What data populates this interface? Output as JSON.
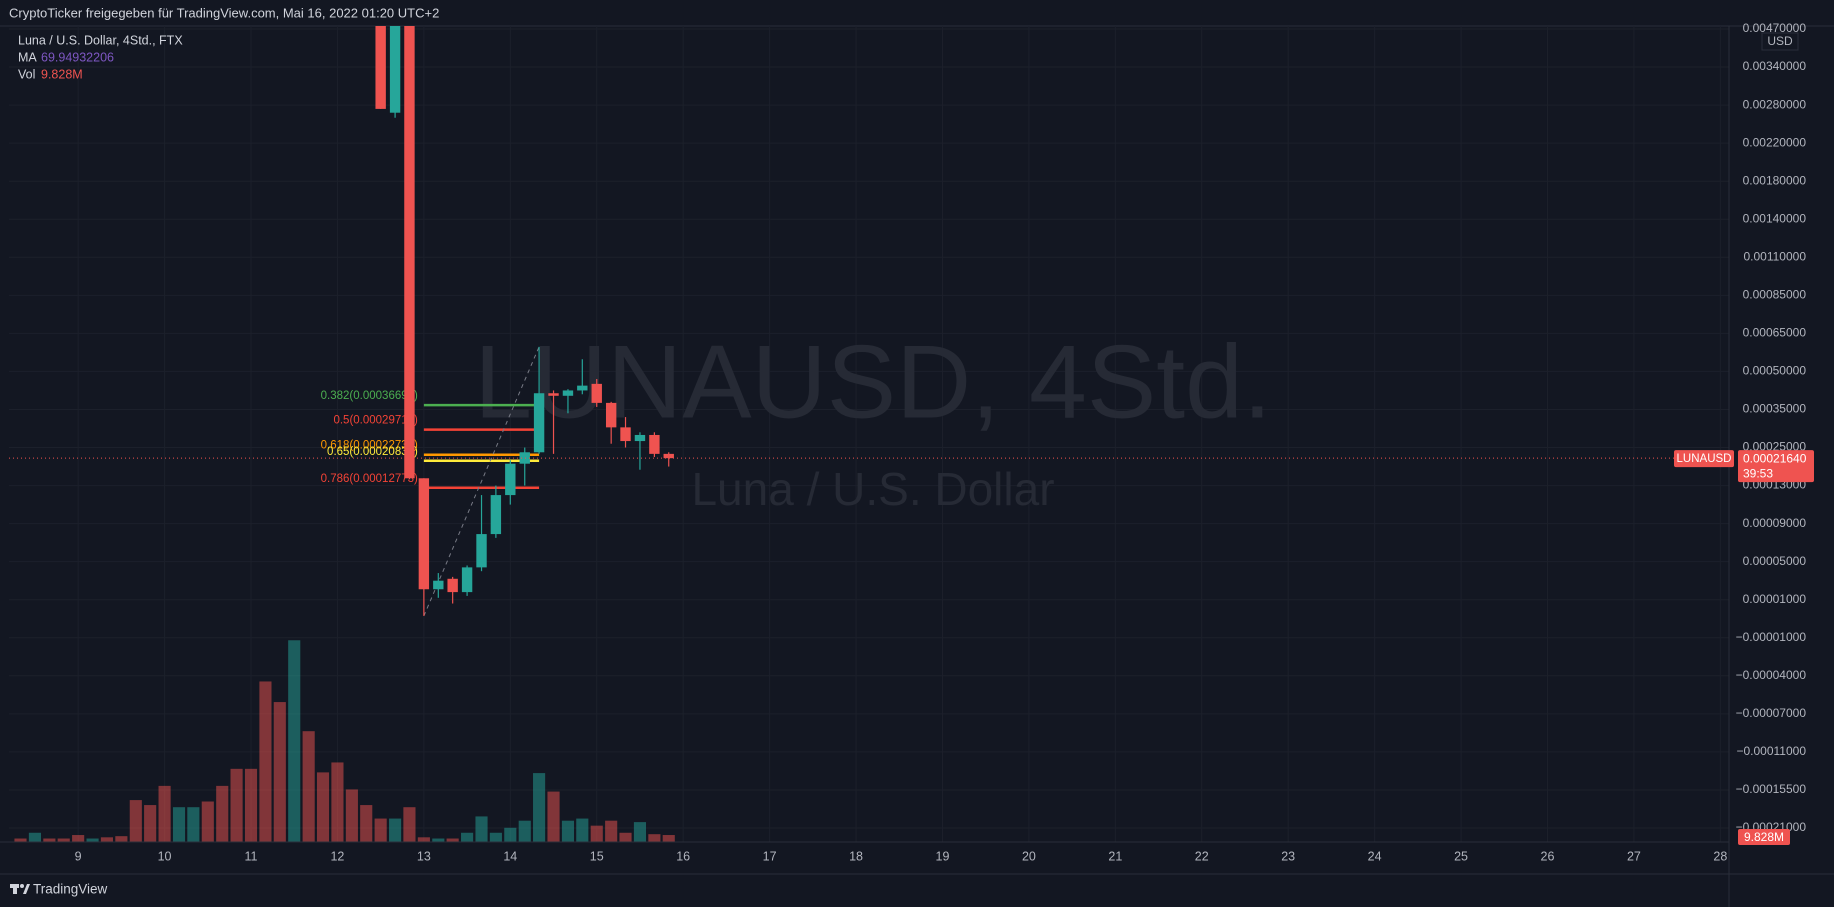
{
  "chart_data": {
    "type": "candlestick",
    "header": "CryptoTicker freigegeben für TradingView.com, Mai 16, 2022 01:20 UTC+2",
    "legend_title": "Luna / U.S. Dollar, 4Std., FTX",
    "ma_label": "MA",
    "ma_value": "69.94932206",
    "vol_label": "Vol",
    "vol_value": "9.828M",
    "watermark": "LUNAUSD, 4Std.",
    "watermark_sub": "Luna / U.S. Dollar",
    "currency": "USD",
    "symbol": "LUNAUSD",
    "last_price": {
      "value": 0.0002164,
      "label": "0.00021640"
    },
    "countdown": "39:53",
    "footer": "TradingView",
    "up_color": "#26a69a",
    "down_color": "#ef5350",
    "grid": true,
    "xlim": [
      8.2,
      28.1
    ],
    "xticks": [
      9,
      10,
      11,
      12,
      13,
      14,
      15,
      16,
      17,
      18,
      19,
      20,
      21,
      22,
      23,
      24,
      25,
      26,
      27,
      28
    ],
    "ylim": [
      -0.00023,
      0.0048
    ],
    "yticks": [
      {
        "value": 0.0047,
        "label": "0.00470000"
      },
      {
        "value": 0.0034,
        "label": "0.00340000"
      },
      {
        "value": 0.0028,
        "label": "0.00280000"
      },
      {
        "value": 0.0022,
        "label": "0.00220000"
      },
      {
        "value": 0.0018,
        "label": "0.00180000"
      },
      {
        "value": 0.0014,
        "label": "0.00140000"
      },
      {
        "value": 0.0011,
        "label": "0.00110000"
      },
      {
        "value": 0.00085,
        "label": "0.00085000"
      },
      {
        "value": 0.00065,
        "label": "0.00065000"
      },
      {
        "value": 0.0005,
        "label": "0.00050000"
      },
      {
        "value": 0.00035,
        "label": "0.00035000"
      },
      {
        "value": 0.00025,
        "label": "0.00025000"
      },
      {
        "value": 0.00013,
        "label": "0.00013000"
      },
      {
        "value": 9e-05,
        "label": "0.00009000"
      },
      {
        "value": 5e-05,
        "label": "0.00005000"
      },
      {
        "value": 1e-05,
        "label": "0.00001000"
      },
      {
        "value": -1e-05,
        "label": "−0.00001000"
      },
      {
        "value": -4e-05,
        "label": "−0.00004000"
      },
      {
        "value": -7e-05,
        "label": "−0.00007000"
      },
      {
        "value": -0.00011,
        "label": "−0.00011000"
      },
      {
        "value": -0.000155,
        "label": "−0.00015500"
      },
      {
        "value": -0.00021,
        "label": "−0.00021000"
      }
    ],
    "x": [
      12.5,
      12.667,
      12.833,
      13.0,
      13.167,
      13.333,
      13.5,
      13.667,
      13.833,
      14.0,
      14.167,
      14.333,
      14.5,
      14.667,
      14.833,
      15.0,
      15.167,
      15.333,
      15.5,
      15.667,
      15.833
    ],
    "open": [
      0.006,
      0.00268,
      0.0058,
      0.000153,
      2.1e-05,
      3.2e-05,
      1.8e-05,
      4.4e-05,
      7.9e-05,
      0.00012,
      0.000199,
      0.000235,
      0.000414,
      0.000404,
      0.000425,
      0.000451,
      0.000376,
      0.000303,
      0.000267,
      0.000283,
      0.00023
    ],
    "high": [
      0.0065,
      0.0065,
      0.006,
      0.000153,
      3.8e-05,
      3.4e-05,
      4.6e-05,
      0.00012,
      0.00013,
      0.00021,
      0.00025,
      0.000597,
      0.000425,
      0.00043,
      0.000548,
      0.00047,
      0.00038,
      0.00033,
      0.00029,
      0.00029,
      0.000235
    ],
    "low": [
      0.00274,
      0.0026,
      0.00015,
      1.5e-06,
      1.2e-05,
      8e-06,
      1.4e-05,
      4e-05,
      7.5e-05,
      0.00011,
      0.00013,
      0.00023,
      0.00023,
      0.00034,
      0.00041,
      0.00036,
      0.00026,
      0.00025,
      0.00018,
      0.00022,
      0.00019
    ],
    "close": [
      0.00274,
      0.0058,
      0.000153,
      2.1e-05,
      3e-05,
      1.8e-05,
      4.4e-05,
      7.9e-05,
      0.00012,
      0.000199,
      0.000235,
      0.000414,
      0.000404,
      0.000425,
      0.000444,
      0.000376,
      0.000303,
      0.000267,
      0.000283,
      0.00023,
      0.0002164
    ],
    "volume": {
      "ylim": [
        0,
        290
      ],
      "x": [
        8.333,
        8.5,
        8.667,
        8.833,
        9.0,
        9.167,
        9.333,
        9.5,
        9.667,
        9.833,
        10.0,
        10.167,
        10.333,
        10.5,
        10.667,
        10.833,
        11.0,
        11.167,
        11.333,
        11.5,
        11.667,
        11.833,
        12.0,
        12.167,
        12.333,
        12.5,
        12.667,
        12.833,
        13.0,
        13.167,
        13.333,
        13.5,
        13.667,
        13.833,
        14.0,
        14.167,
        14.333,
        14.5,
        14.667,
        14.833,
        15.0,
        15.167,
        15.333,
        15.5,
        15.667,
        15.833
      ],
      "values": [
        4.9,
        13,
        4.9,
        4.9,
        9.8,
        4.9,
        6.6,
        8.2,
        59,
        52,
        79,
        49,
        49,
        57,
        79,
        103,
        103,
        226,
        197,
        284,
        156,
        98,
        112,
        74,
        52,
        33,
        33,
        49,
        6.6,
        4.9,
        4.9,
        13,
        36,
        13,
        20,
        30,
        97,
        71,
        30,
        33,
        23,
        30,
        13,
        28,
        11,
        9.828
      ],
      "colors": [
        "#ef5350",
        "#26a69a",
        "#ef5350",
        "#ef5350",
        "#ef5350",
        "#26a69a",
        "#ef5350",
        "#ef5350",
        "#ef5350",
        "#ef5350",
        "#ef5350",
        "#26a69a",
        "#26a69a",
        "#ef5350",
        "#ef5350",
        "#ef5350",
        "#ef5350",
        "#ef5350",
        "#ef5350",
        "#26a69a",
        "#ef5350",
        "#ef5350",
        "#ef5350",
        "#ef5350",
        "#ef5350",
        "#ef5350",
        "#26a69a",
        "#ef5350",
        "#ef5350",
        "#26a69a",
        "#ef5350",
        "#26a69a",
        "#26a69a",
        "#26a69a",
        "#26a69a",
        "#26a69a",
        "#26a69a",
        "#ef5350",
        "#26a69a",
        "#26a69a",
        "#ef5350",
        "#ef5350",
        "#ef5350",
        "#26a69a",
        "#ef5350",
        "#ef5350"
      ]
    },
    "fib_x": [
      13.0,
      14.333
    ],
    "fib_levels": [
      {
        "label": "0.382(0.00036695)",
        "price": 0.00036695,
        "color": "#4caf50"
      },
      {
        "label": "0.5(0.00029715)",
        "price": 0.00029715,
        "color": "#f44336"
      },
      {
        "label": "0.618(0.00022735)",
        "price": 0.00022735,
        "color": "#ff9800"
      },
      {
        "label": "0.65(0.00020836)",
        "price": 0.00020836,
        "color": "#ffeb3b"
      },
      {
        "label": "0.786(0.00012773)",
        "price": 0.00012773,
        "color": "#f44336"
      }
    ],
    "trendline": {
      "x": [
        13.0,
        14.333
      ],
      "y": [
        1.5e-06,
        0.000597
      ]
    }
  }
}
